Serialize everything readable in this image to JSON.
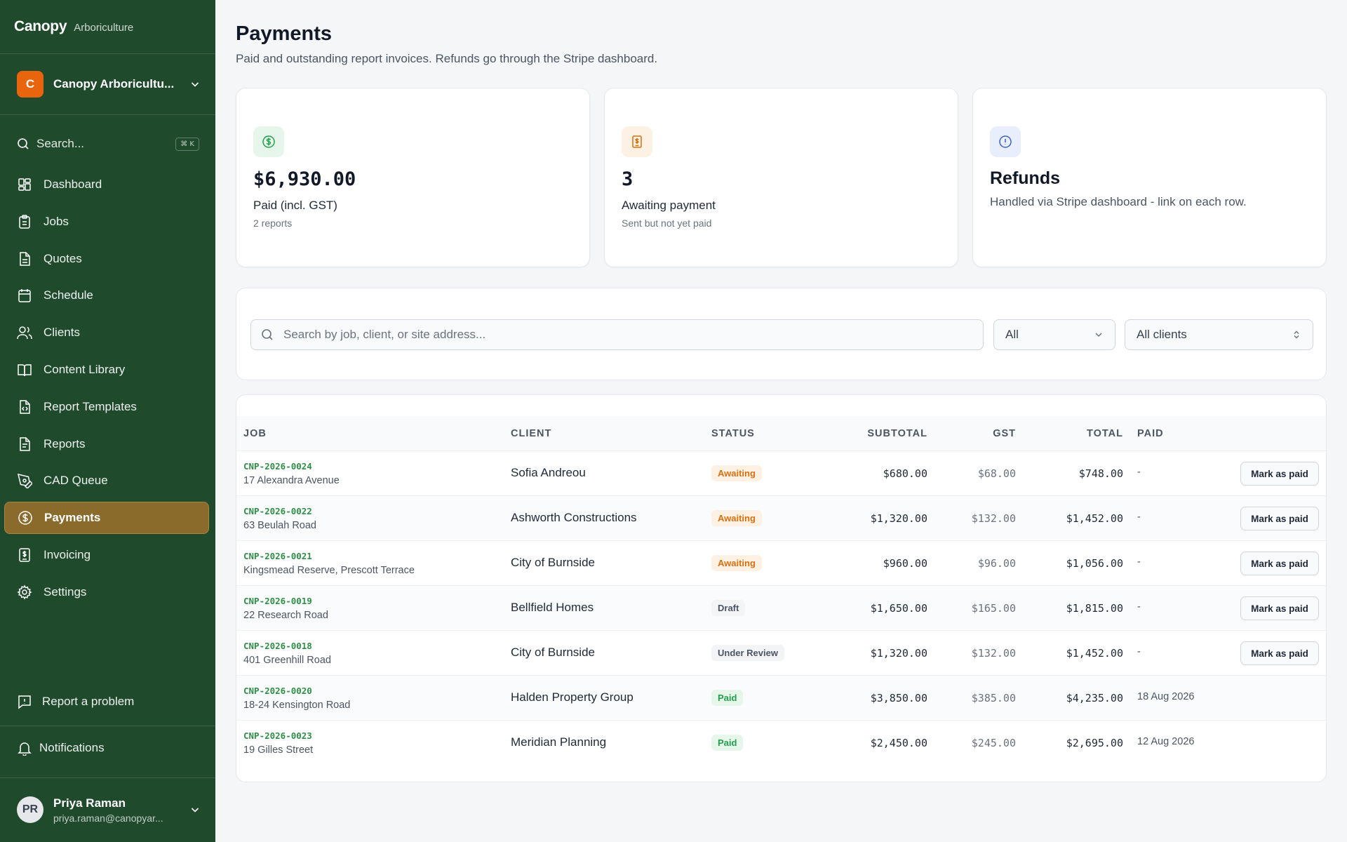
{
  "sidebar": {
    "brand": "Canopy",
    "brand_sub": "Arboriculture",
    "org": {
      "initial": "C",
      "name": "Canopy Arboricultu..."
    },
    "search": {
      "label": "Search...",
      "shortcut": "⌘ K"
    },
    "nav": [
      {
        "label": "Dashboard",
        "icon": "dashboard-icon"
      },
      {
        "label": "Jobs",
        "icon": "clipboard-icon"
      },
      {
        "label": "Quotes",
        "icon": "document-icon"
      },
      {
        "label": "Schedule",
        "icon": "calendar-icon"
      },
      {
        "label": "Clients",
        "icon": "users-icon"
      },
      {
        "label": "Content Library",
        "icon": "book-icon"
      },
      {
        "label": "Report Templates",
        "icon": "file-code-icon"
      },
      {
        "label": "Reports",
        "icon": "report-icon"
      },
      {
        "label": "CAD Queue",
        "icon": "pen-tool-icon"
      },
      {
        "label": "Payments",
        "icon": "dollar-circle-icon",
        "active": true
      },
      {
        "label": "Invoicing",
        "icon": "invoice-icon"
      },
      {
        "label": "Settings",
        "icon": "gear-icon"
      }
    ],
    "report_problem": "Report a problem",
    "notifications": "Notifications",
    "user": {
      "initials": "PR",
      "name": "Priya Raman",
      "email": "priya.raman@canopyar..."
    }
  },
  "header": {
    "title": "Payments",
    "subtitle": "Paid and outstanding report invoices. Refunds go through the Stripe dashboard."
  },
  "cards": {
    "paid": {
      "value": "$6,930.00",
      "label": "Paid (incl. GST)",
      "sub": "2 reports"
    },
    "awaiting": {
      "value": "3",
      "label": "Awaiting payment",
      "sub": "Sent but not yet paid"
    },
    "refunds": {
      "title": "Refunds",
      "desc": "Handled via Stripe dashboard - link on each row."
    }
  },
  "filters": {
    "search_placeholder": "Search by job, client, or site address...",
    "status_value": "All",
    "client_value": "All clients"
  },
  "table": {
    "headers": {
      "job": "JOB",
      "client": "CLIENT",
      "status": "STATUS",
      "subtotal": "SUBTOTAL",
      "gst": "GST",
      "total": "TOTAL",
      "paid": "PAID"
    },
    "action_label": "Mark as paid",
    "rows": [
      {
        "id": "CNP-2026-0024",
        "address": "17 Alexandra Avenue",
        "client": "Sofia Andreou",
        "status": "Awaiting",
        "subtotal": "$680.00",
        "gst": "$68.00",
        "total": "$748.00",
        "paid": "-"
      },
      {
        "id": "CNP-2026-0022",
        "address": "63 Beulah Road",
        "client": "Ashworth Constructions",
        "status": "Awaiting",
        "subtotal": "$1,320.00",
        "gst": "$132.00",
        "total": "$1,452.00",
        "paid": "-"
      },
      {
        "id": "CNP-2026-0021",
        "address": "Kingsmead Reserve, Prescott Terrace",
        "client": "City of Burnside",
        "status": "Awaiting",
        "subtotal": "$960.00",
        "gst": "$96.00",
        "total": "$1,056.00",
        "paid": "-"
      },
      {
        "id": "CNP-2026-0019",
        "address": "22 Research Road",
        "client": "Bellfield Homes",
        "status": "Draft",
        "subtotal": "$1,650.00",
        "gst": "$165.00",
        "total": "$1,815.00",
        "paid": "-"
      },
      {
        "id": "CNP-2026-0018",
        "address": "401 Greenhill Road",
        "client": "City of Burnside",
        "status": "Under Review",
        "subtotal": "$1,320.00",
        "gst": "$132.00",
        "total": "$1,452.00",
        "paid": "-"
      },
      {
        "id": "CNP-2026-0020",
        "address": "18-24 Kensington Road",
        "client": "Halden Property Group",
        "status": "Paid",
        "subtotal": "$3,850.00",
        "gst": "$385.00",
        "total": "$4,235.00",
        "paid": "18 Aug 2026"
      },
      {
        "id": "CNP-2026-0023",
        "address": "19 Gilles Street",
        "client": "Meridian Planning",
        "status": "Paid",
        "subtotal": "$2,450.00",
        "gst": "$245.00",
        "total": "$2,695.00",
        "paid": "12 Aug 2026"
      }
    ]
  },
  "colors": {
    "sidebar": "#1f4a2c",
    "active_nav": "#8a6b2c",
    "accent_green": "#2f8f46",
    "awaiting": "#d9700f",
    "paid": "#22a04b"
  }
}
